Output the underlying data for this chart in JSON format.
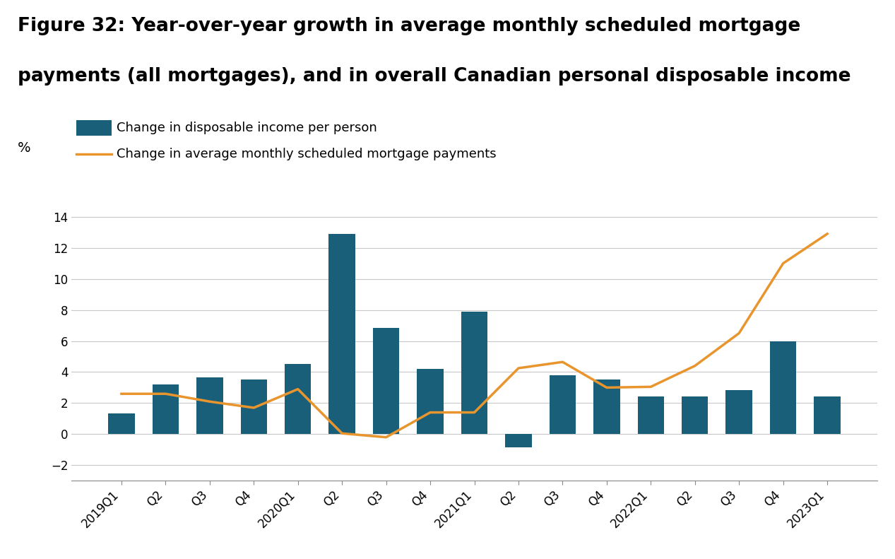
{
  "title_line1": "Figure 32: Year-over-year growth in average monthly scheduled mortgage",
  "title_line2": "payments (all mortgages), and in overall Canadian personal disposable income",
  "ylabel": "%",
  "categories": [
    "2019Q1",
    "Q2",
    "Q3",
    "Q4",
    "2020Q1",
    "Q2",
    "Q3",
    "Q4",
    "2021Q1",
    "Q2",
    "Q3",
    "Q4",
    "2022Q1",
    "Q2",
    "Q3",
    "Q4",
    "2023Q1"
  ],
  "bar_values": [
    1.35,
    3.2,
    3.65,
    3.5,
    4.5,
    12.9,
    6.85,
    4.2,
    7.9,
    -0.85,
    3.8,
    3.5,
    2.45,
    2.45,
    2.85,
    6.0,
    2.45
  ],
  "line_values": [
    2.6,
    2.6,
    2.1,
    1.7,
    2.9,
    0.05,
    -0.2,
    1.4,
    1.4,
    4.25,
    4.65,
    3.0,
    3.05,
    4.4,
    6.5,
    11.0,
    12.9
  ],
  "bar_color": "#1a5f7a",
  "line_color": "#e8952e",
  "legend_bar_label": "Change in disposable income per person",
  "legend_line_label": "Change in average monthly scheduled mortgage payments",
  "ylim": [
    -3,
    15
  ],
  "yticks": [
    -2,
    0,
    2,
    4,
    6,
    8,
    10,
    12,
    14
  ],
  "background_color": "#ffffff",
  "plot_background_color": "#ffffff",
  "grid_color": "#c8c8c8",
  "title_fontsize": 19,
  "axis_fontsize": 12,
  "legend_fontsize": 13,
  "tick_label_fontsize": 12
}
